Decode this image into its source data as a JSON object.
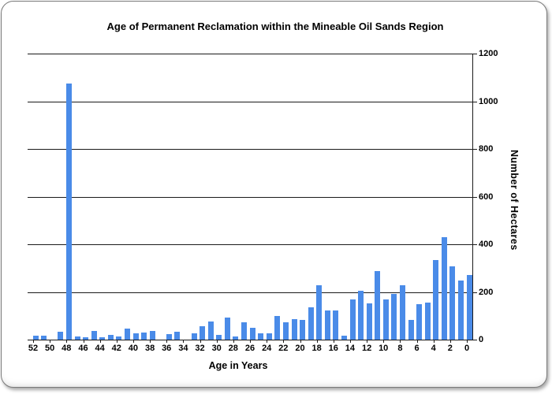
{
  "chart_data": {
    "type": "bar",
    "title": "Age of Permanent Reclamation within the Mineable Oil Sands Region",
    "xlabel": "Age in Years",
    "ylabel": "Number of Hectares",
    "x_axis_note": "ages shown left-to-right from 52 down to 0",
    "x": [
      52,
      51,
      50,
      49,
      48,
      47,
      46,
      45,
      44,
      43,
      42,
      41,
      40,
      39,
      38,
      37,
      36,
      35,
      34,
      33,
      32,
      31,
      30,
      29,
      28,
      27,
      26,
      25,
      24,
      23,
      22,
      21,
      20,
      19,
      18,
      17,
      16,
      15,
      14,
      13,
      12,
      11,
      10,
      9,
      8,
      7,
      6,
      5,
      4,
      3,
      2,
      1,
      0
    ],
    "values": [
      18,
      17,
      0,
      34,
      1074,
      14,
      11,
      36,
      10,
      20,
      12,
      47,
      25,
      29,
      38,
      0,
      22,
      34,
      0,
      26,
      56,
      75,
      20,
      92,
      13,
      73,
      50,
      25,
      28,
      100,
      74,
      85,
      83,
      134,
      229,
      123,
      122,
      18,
      167,
      205,
      152,
      286,
      170,
      192,
      229,
      82,
      148,
      156,
      333,
      430,
      306,
      249,
      270
    ],
    "x_tick_labels": [
      "52",
      "50",
      "48",
      "46",
      "44",
      "42",
      "40",
      "38",
      "36",
      "34",
      "32",
      "30",
      "28",
      "26",
      "24",
      "22",
      "20",
      "18",
      "16",
      "14",
      "12",
      "10",
      "8",
      "6",
      "4",
      "2",
      "0"
    ],
    "y_ticks": [
      0,
      200,
      400,
      600,
      800,
      1000,
      1200
    ],
    "ylim": [
      0,
      1200
    ],
    "grid": true,
    "legend": false,
    "y_axis_side": "right",
    "bar_color": "#4a8be8",
    "grid_color": "#1a1a1a",
    "text_color": "#000000"
  }
}
